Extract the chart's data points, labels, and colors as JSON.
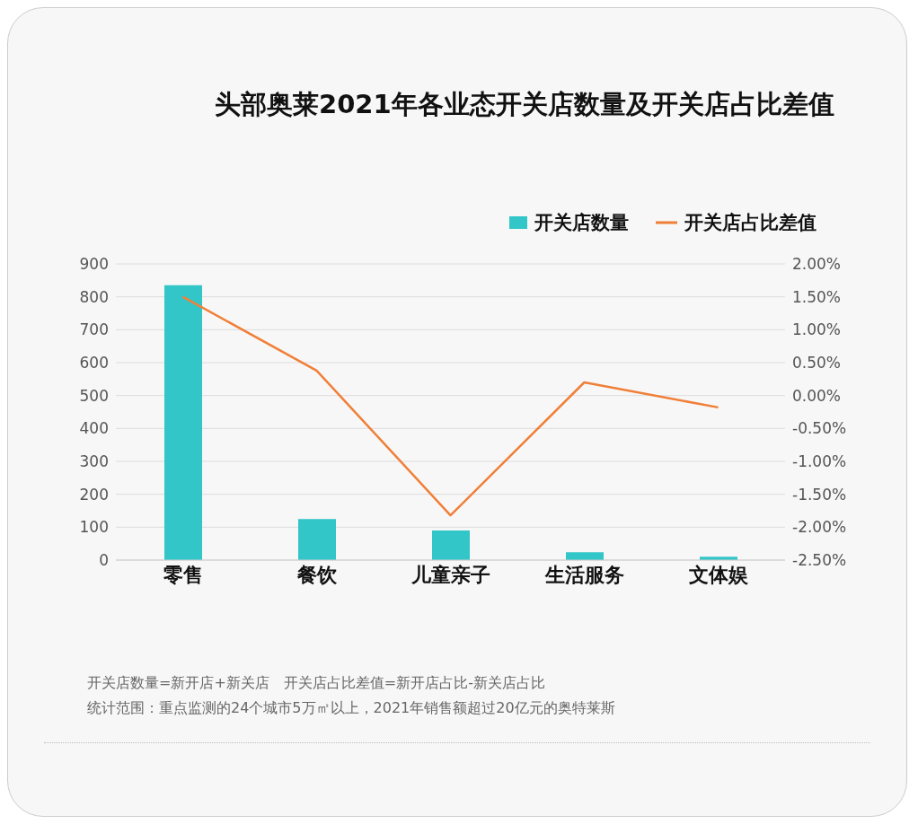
{
  "chart_data": {
    "type": "bar",
    "title": "头部奥莱2021年各业态开关店数量及开关店占比差值",
    "categories": [
      "零售",
      "餐饮",
      "儿童亲子",
      "生活服务",
      "文体娱"
    ],
    "series": [
      {
        "name": "开关店数量",
        "color": "#33c6c8",
        "values": [
          835,
          125,
          90,
          24,
          10
        ]
      },
      {
        "name": "开关店占比差值",
        "type": "line",
        "axis": "y2",
        "color": "#f07f38",
        "values": [
          1.5,
          0.38,
          -1.82,
          0.2,
          -0.18
        ]
      }
    ],
    "ylim": [
      0,
      900
    ],
    "yticks": [
      0,
      100,
      200,
      300,
      400,
      500,
      600,
      700,
      800,
      900
    ],
    "y2lim": [
      -2.5,
      2.0
    ],
    "y2ticks": [
      {
        "value": -2.5,
        "label": "-2.50%"
      },
      {
        "value": -2.0,
        "label": "-2.00%"
      },
      {
        "value": -1.5,
        "label": "-1.50%"
      },
      {
        "value": -1.0,
        "label": "-1.00%"
      },
      {
        "value": -0.5,
        "label": "-0.50%"
      },
      {
        "value": 0,
        "label": "0.00%"
      },
      {
        "value": 0.5,
        "label": "0.50%"
      },
      {
        "value": 1.0,
        "label": "1.00%"
      },
      {
        "value": 1.5,
        "label": "1.50%"
      },
      {
        "value": 2.0,
        "label": "2.00%"
      }
    ],
    "grid": "y",
    "legend": "top right",
    "marker": "none",
    "line_style": "solid",
    "annotations": [
      "开关店数量=新开店+新关店　开关店占比差值=新开店占比-新关店占比",
      "统计范围：重点监测的24个城市5万㎡以上，2021年销售额超过20亿元的奥特莱斯"
    ]
  }
}
